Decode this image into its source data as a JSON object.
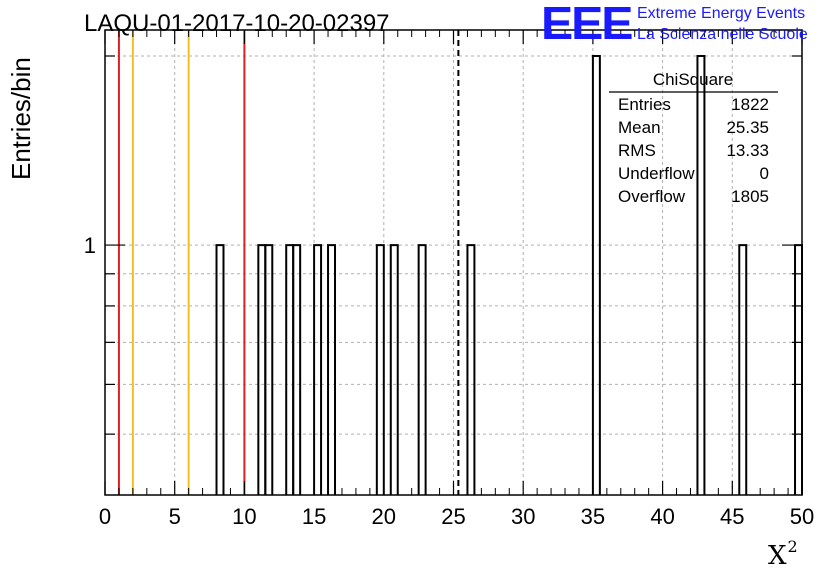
{
  "title": "LAQU-01-2017-10-20-02397",
  "logo": {
    "mark": "EEE",
    "line1": "Extreme Energy Events",
    "line2": "La Scienza nelle Scuole"
  },
  "colors": {
    "red_line": "#e02020",
    "yellow_line": "#f0c020",
    "histogram": "#000000",
    "logo_blue": "#1a1aff",
    "grid": "#b0b0b0"
  },
  "chart_data": {
    "type": "bar",
    "subtype": "histogram",
    "title": "LAQU-01-2017-10-20-02397",
    "xlabel": "X",
    "xlabel_superscript": "2",
    "ylabel": "Entries/bin",
    "xlim": [
      0,
      50
    ],
    "ylim_log": [
      0.4,
      2.2
    ],
    "y_scale": "log",
    "grid": true,
    "bin_width": 0.5,
    "x_ticks": [
      "0",
      "5",
      "10",
      "15",
      "20",
      "25",
      "30",
      "35",
      "40",
      "45",
      "50"
    ],
    "y_ticks": [
      "1"
    ],
    "bins": [
      {
        "x": 8.0,
        "y": 1
      },
      {
        "x": 11.0,
        "y": 1
      },
      {
        "x": 11.5,
        "y": 1
      },
      {
        "x": 13.0,
        "y": 1
      },
      {
        "x": 13.5,
        "y": 1
      },
      {
        "x": 15.0,
        "y": 1
      },
      {
        "x": 16.0,
        "y": 1
      },
      {
        "x": 19.5,
        "y": 1
      },
      {
        "x": 20.5,
        "y": 1
      },
      {
        "x": 22.5,
        "y": 1
      },
      {
        "x": 26.0,
        "y": 1
      },
      {
        "x": 35.0,
        "y": 2
      },
      {
        "x": 42.5,
        "y": 2
      },
      {
        "x": 45.5,
        "y": 1
      },
      {
        "x": 49.5,
        "y": 1
      }
    ],
    "vertical_lines": [
      {
        "x": 1.0,
        "color": "#e02020",
        "style": "solid"
      },
      {
        "x": 2.0,
        "color": "#f0c020",
        "style": "solid"
      },
      {
        "x": 6.0,
        "color": "#f0c020",
        "style": "solid"
      },
      {
        "x": 10.0,
        "color": "#e02020",
        "style": "solid"
      },
      {
        "x": 25.35,
        "color": "#000000",
        "style": "dashed"
      }
    ],
    "stats_box": {
      "name": "ChiSquare",
      "rows": [
        {
          "label": "Entries",
          "value": "1822"
        },
        {
          "label": "Mean",
          "value": "25.35"
        },
        {
          "label": "RMS",
          "value": "13.33"
        },
        {
          "label": "Underflow",
          "value": "0"
        },
        {
          "label": "Overflow",
          "value": "1805"
        }
      ]
    }
  }
}
